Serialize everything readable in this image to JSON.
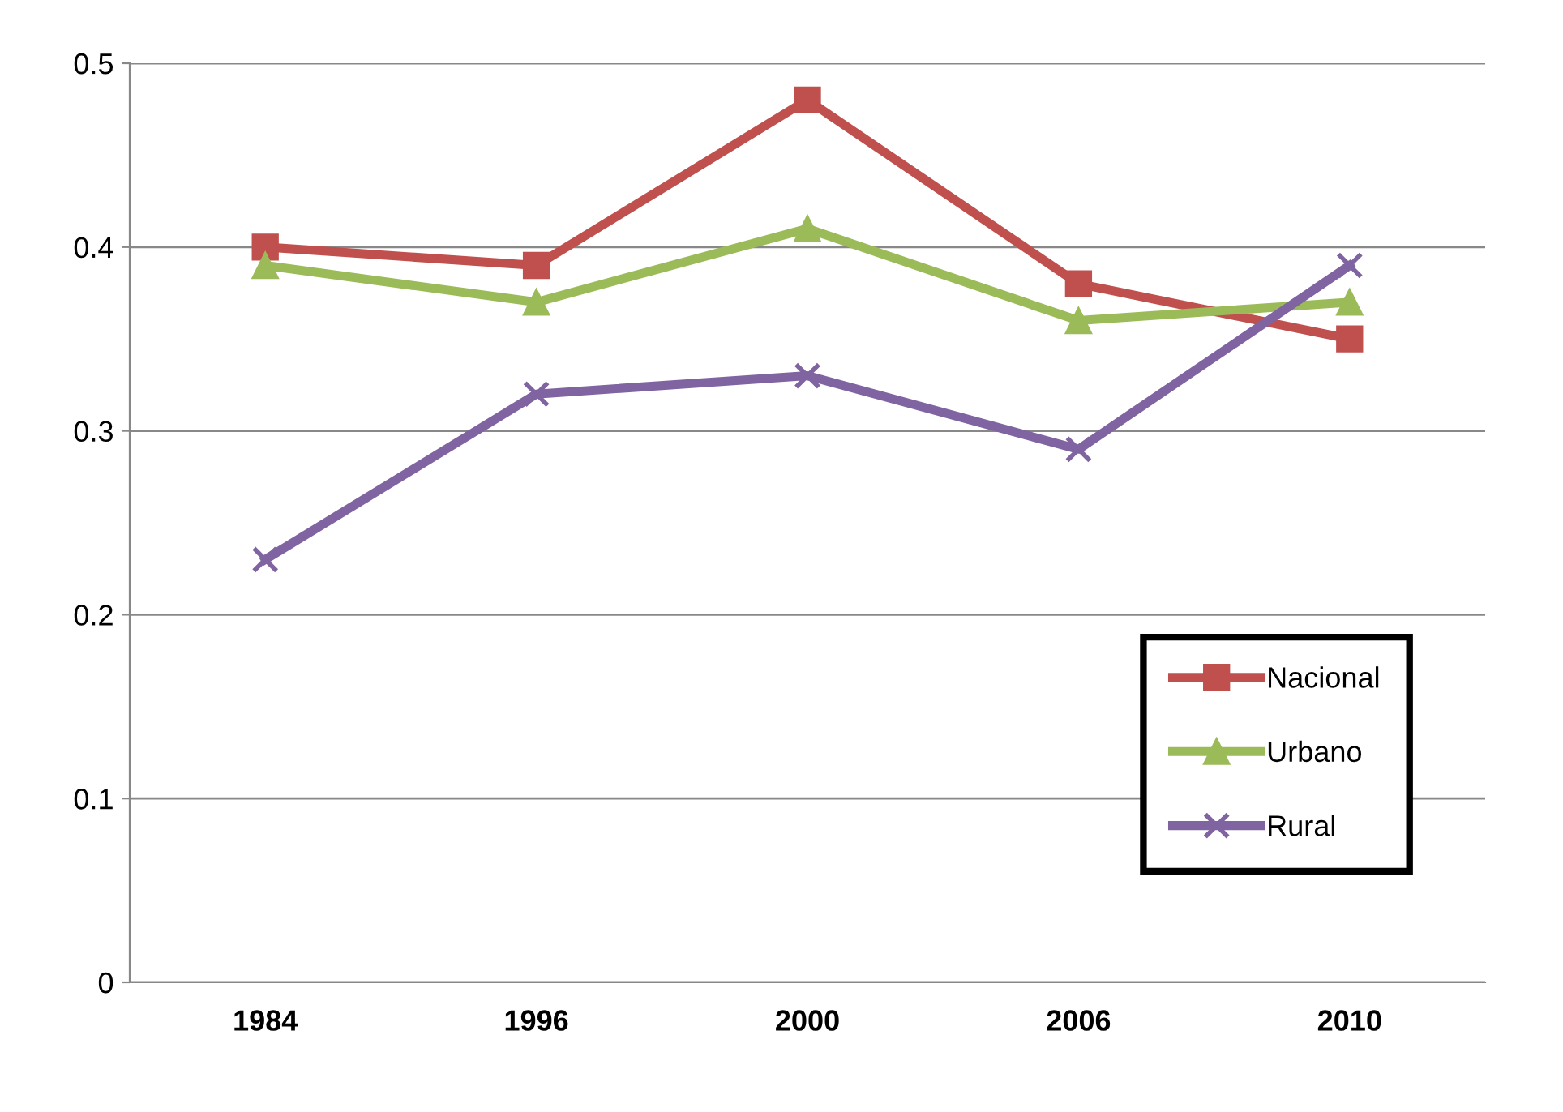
{
  "chart_data": {
    "type": "line",
    "categories": [
      "1984",
      "1996",
      "2000",
      "2006",
      "2010"
    ],
    "series": [
      {
        "name": "Nacional",
        "color": "#c0504d",
        "marker": "square",
        "values": [
          0.4,
          0.39,
          0.48,
          0.38,
          0.35
        ]
      },
      {
        "name": "Urbano",
        "color": "#9bbb59",
        "marker": "triangle",
        "values": [
          0.39,
          0.37,
          0.41,
          0.36,
          0.37
        ]
      },
      {
        "name": "Rural",
        "color": "#8064a2",
        "marker": "cross",
        "values": [
          0.23,
          0.32,
          0.33,
          0.29,
          0.39
        ]
      }
    ],
    "ylim": [
      0,
      0.5
    ],
    "yticks": [
      0,
      0.1,
      0.2,
      0.3,
      0.4,
      0.5
    ],
    "grid": "y",
    "legend": "bottom right",
    "line_style": "solid"
  }
}
